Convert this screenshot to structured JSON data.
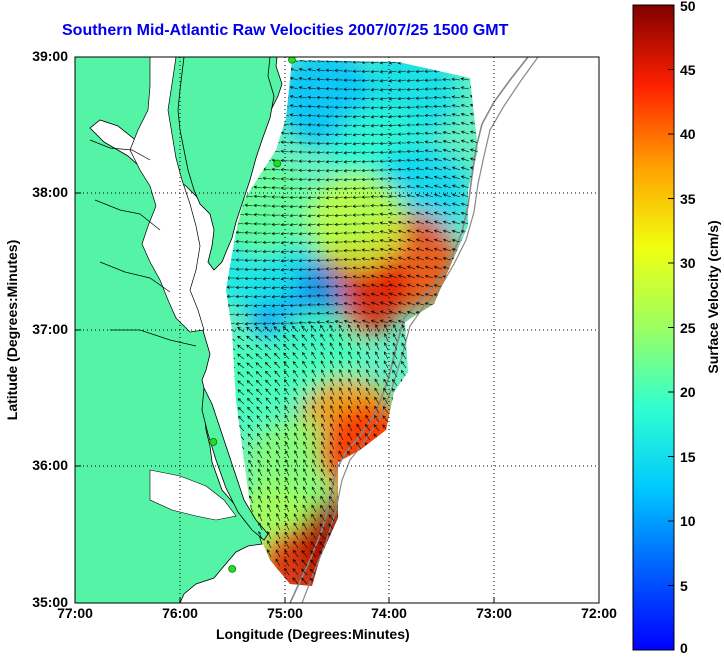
{
  "title": "Southern Mid-Atlantic Raw Velocities 2007/07/25 1500 GMT",
  "xlabel": "Longitude (Degrees:Minutes)",
  "ylabel": "Latitude (Degrees:Minutes)",
  "colorbar_label": "Surface Velocity (cm/s)",
  "xticks": [
    "77:00",
    "76:00",
    "75:00",
    "74:00",
    "73:00",
    "72:00"
  ],
  "yticks": [
    "39:00",
    "38:00",
    "37:00",
    "36:00",
    "35:00"
  ],
  "colorbar_ticks": [
    "50",
    "45",
    "40",
    "35",
    "30",
    "25",
    "20",
    "15",
    "10",
    "5",
    "0"
  ],
  "colors": {
    "land": "#55f3a6",
    "water": "#ffffff",
    "title": "#0000ee",
    "coast": "#000000",
    "bathymetry": "#888888",
    "station": "#22dd22"
  },
  "chart_data": {
    "type": "heatmap",
    "xlim": [
      -77,
      -72
    ],
    "ylim": [
      35,
      39
    ],
    "clim": [
      0,
      50
    ],
    "colormap": "jet",
    "grid": true,
    "stations": [
      [
        -74.93,
        38.98
      ],
      [
        -75.07,
        38.22
      ],
      [
        -75.68,
        36.18
      ],
      [
        -75.5,
        35.25
      ]
    ],
    "velocity_regions": [
      {
        "lon": -74.6,
        "lat": 38.7,
        "speed": 12
      },
      {
        "lon": -73.8,
        "lat": 38.75,
        "speed": 15
      },
      {
        "lon": -74.1,
        "lat": 38.3,
        "speed": 18
      },
      {
        "lon": -73.7,
        "lat": 38.0,
        "speed": 14
      },
      {
        "lon": -73.8,
        "lat": 37.5,
        "speed": 42
      },
      {
        "lon": -74.3,
        "lat": 37.3,
        "speed": 45
      },
      {
        "lon": -74.9,
        "lat": 37.2,
        "speed": 10
      },
      {
        "lon": -75.3,
        "lat": 37.5,
        "speed": 16
      },
      {
        "lon": -75.2,
        "lat": 37.9,
        "speed": 22
      },
      {
        "lon": -74.3,
        "lat": 37.8,
        "speed": 28
      },
      {
        "lon": -74.7,
        "lat": 36.8,
        "speed": 20
      },
      {
        "lon": -74.4,
        "lat": 36.3,
        "speed": 38
      },
      {
        "lon": -74.9,
        "lat": 36.0,
        "speed": 24
      },
      {
        "lon": -75.1,
        "lat": 35.5,
        "speed": 26
      },
      {
        "lon": -74.8,
        "lat": 35.2,
        "speed": 45
      },
      {
        "lon": -74.2,
        "lat": 36.1,
        "speed": 43
      },
      {
        "lon": -74.4,
        "lat": 35.45,
        "speed": 48
      },
      {
        "lon": -75.4,
        "lat": 36.6,
        "speed": 20
      }
    ]
  }
}
